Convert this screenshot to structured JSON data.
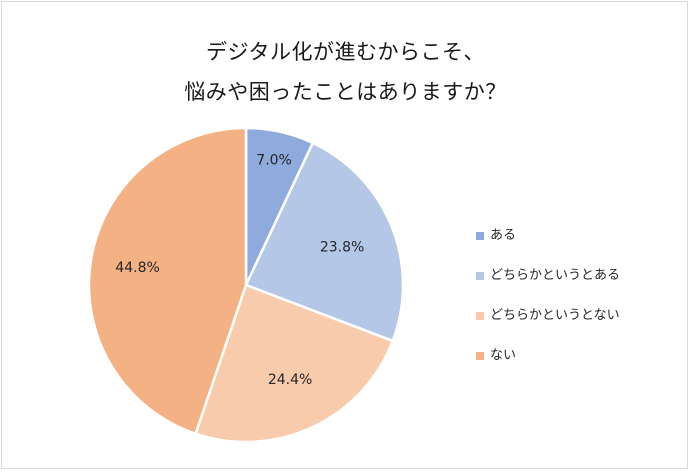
{
  "chart_data": {
    "type": "pie",
    "title_lines": [
      "デジタル化が進むからこそ、",
      "悩みや困ったことはありますか？"
    ],
    "categories": [
      "ある",
      "どちらかというとある",
      "どちらかというとない",
      "ない"
    ],
    "values": [
      7.0,
      23.8,
      24.4,
      44.8
    ],
    "data_labels": [
      "7.0%",
      "23.8%",
      "24.4%",
      "44.8%"
    ],
    "colors": [
      "#8faadc",
      "#b4c7e7",
      "#f8cbad",
      "#f4b183"
    ],
    "start_angle_deg": 0,
    "direction": "clockwise",
    "legend_position": "right"
  }
}
